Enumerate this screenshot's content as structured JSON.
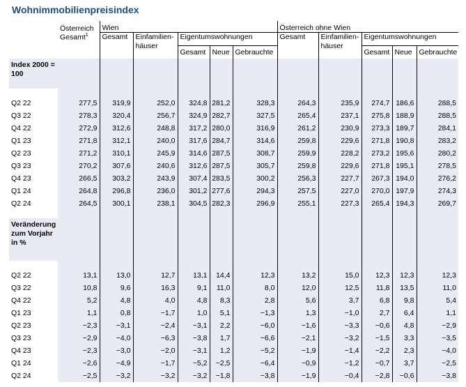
{
  "title": "Wohnimmobilienpreisindex",
  "header": {
    "oesterreich": "Österreich",
    "wien": "Wien",
    "oesterreich_ohne_wien": "Österreich ohne Wien",
    "gesamt_footnote": "Gesamt",
    "footnote_mark": "1",
    "gesamt": "Gesamt",
    "einfamilienhaeuser_1": "Einfamilien-",
    "einfamilienhaeuser_2": "häuser",
    "eigentumswohnungen": "Eigentumswohnungen",
    "neue": "Neue",
    "gebrauchte": "Gebrauchte"
  },
  "sections": [
    {
      "label_lines": [
        "Index 2000 =",
        "100"
      ],
      "rows": [
        {
          "period": "Q2 22",
          "values": [
            "277,5",
            "319,9",
            "252,0",
            "324,8",
            "281,2",
            "328,3",
            "264,3",
            "235,9",
            "274,7",
            "186,6",
            "288,5"
          ]
        },
        {
          "period": "Q3 22",
          "values": [
            "278,3",
            "320,4",
            "256,7",
            "324,9",
            "282,7",
            "327,5",
            "265,4",
            "237,1",
            "275,8",
            "188,9",
            "288,5"
          ]
        },
        {
          "period": "Q4 22",
          "values": [
            "272,9",
            "312,6",
            "248,8",
            "317,2",
            "280,0",
            "316,9",
            "261,2",
            "230,9",
            "273,3",
            "189,7",
            "284,1"
          ]
        },
        {
          "period": "Q1 23",
          "values": [
            "271,8",
            "312,1",
            "240,0",
            "317,6",
            "284,7",
            "314,6",
            "259,8",
            "229,6",
            "271,8",
            "190,8",
            "283,2"
          ]
        },
        {
          "period": "Q2 23",
          "values": [
            "271,2",
            "310,1",
            "245,9",
            "314,6",
            "287,5",
            "308,7",
            "259,9",
            "228,2",
            "273,2",
            "195,6",
            "280,2"
          ]
        },
        {
          "period": "Q3 23",
          "values": [
            "270,2",
            "307,6",
            "240,6",
            "312,6",
            "287,5",
            "305,7",
            "259,8",
            "229,6",
            "271,8",
            "195,1",
            "278,5"
          ]
        },
        {
          "period": "Q4 23",
          "values": [
            "266,5",
            "303,2",
            "243,9",
            "307,4",
            "283,5",
            "300,2",
            "256,3",
            "227,7",
            "267,3",
            "194,0",
            "276,2"
          ]
        },
        {
          "period": "Q1 24",
          "values": [
            "264,8",
            "296,8",
            "236,0",
            "301,2",
            "277,6",
            "294,3",
            "257,5",
            "227,0",
            "270,0",
            "197,9",
            "274,3"
          ]
        },
        {
          "period": "Q2 24",
          "values": [
            "264,5",
            "300,1",
            "238,1",
            "304,5",
            "282,3",
            "296,9",
            "255,1",
            "227,3",
            "265,4",
            "194,3",
            "269,7"
          ]
        }
      ]
    },
    {
      "label_lines": [
        "Veränderung",
        "zum Vorjahr",
        "in %"
      ],
      "rows": [
        {
          "period": "Q2 22",
          "values": [
            "13,1",
            "13,0",
            "12,7",
            "13,1",
            "14,4",
            "12,3",
            "13,2",
            "15,0",
            "12,3",
            "12,3",
            "12,3"
          ]
        },
        {
          "period": "Q3 22",
          "values": [
            "10,8",
            "9,6",
            "16,3",
            "9,1",
            "11,0",
            "8,0",
            "12,0",
            "12,5",
            "11,8",
            "13,5",
            "11,0"
          ]
        },
        {
          "period": "Q4 22",
          "values": [
            "5,2",
            "4,8",
            "4,0",
            "4,8",
            "8,3",
            "2,8",
            "5,6",
            "3,7",
            "6,8",
            "9,8",
            "5,4"
          ]
        },
        {
          "period": "Q1 23",
          "values": [
            "1,1",
            "0,8",
            "−1,7",
            "1,0",
            "5,1",
            "−1,3",
            "1,3",
            "−1,0",
            "2,7",
            "6,4",
            "1,1"
          ]
        },
        {
          "period": "Q2 23",
          "values": [
            "−2,3",
            "−3,1",
            "−2,4",
            "−3,1",
            "2,2",
            "−6,0",
            "−1,6",
            "−3,3",
            "−0,6",
            "4,8",
            "−2,9"
          ]
        },
        {
          "period": "Q3 23",
          "values": [
            "−2,9",
            "−4,0",
            "−6,3",
            "−3,8",
            "1,7",
            "−6,6",
            "−2,1",
            "−3,2",
            "−1,5",
            "3,3",
            "−3,5"
          ]
        },
        {
          "period": "Q4 23",
          "values": [
            "−2,3",
            "−3,0",
            "−2,0",
            "−3,1",
            "1,2",
            "−5,2",
            "−1,9",
            "−1,4",
            "−2,2",
            "2,3",
            "−4,0"
          ]
        },
        {
          "period": "Q1 24",
          "values": [
            "−2,6",
            "−4,9",
            "−1,7",
            "−5,2",
            "−2,5",
            "−6,4",
            "−0,9",
            "−1,2",
            "−0,7",
            "3,7",
            "−2,5"
          ]
        },
        {
          "period": "Q2 24",
          "values": [
            "−2,5",
            "−3,2",
            "−3,2",
            "−3,2",
            "−1,8",
            "−3,8",
            "−1,9",
            "−0,4",
            "−2,8",
            "−0,6",
            "−3,8"
          ]
        }
      ]
    }
  ]
}
